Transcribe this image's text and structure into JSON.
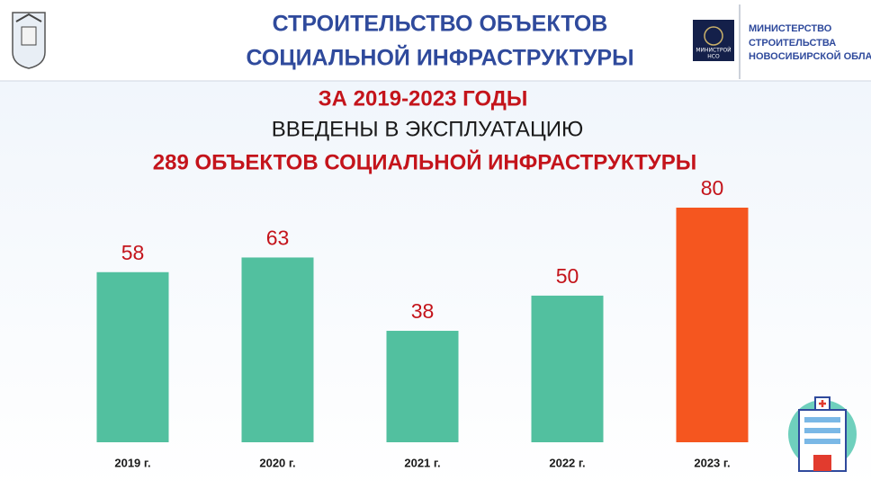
{
  "header": {
    "title": [
      "СТРОИТЕЛЬСТВО ОБЪЕКТОВ",
      "СОЦИАЛЬНОЙ ИНФРАСТРУКТУРЫ"
    ],
    "logo_text": [
      "МИНИСТРОЙ",
      "НСО"
    ],
    "ministry": [
      "МИНИСТЕРСТВО",
      "СТРОИТЕЛЬСТВА",
      "НОВОСИБИРСКОЙ ОБЛАСТИ"
    ]
  },
  "chart_data": {
    "type": "bar",
    "subtitle": [
      "ЗА 2019-2023 ГОДЫ",
      "ВВЕДЕНЫ В ЭКСПЛУАТАЦИЮ",
      "289 ОБЪЕКТОВ СОЦИАЛЬНОЙ ИНФРАСТРУКТУРЫ"
    ],
    "categories": [
      "2019 г.",
      "2020 г.",
      "2021 г.",
      "2022 г.",
      "2023 г."
    ],
    "values": [
      58,
      63,
      38,
      50,
      80
    ],
    "colors": [
      "#52c09f",
      "#52c09f",
      "#52c09f",
      "#52c09f",
      "#f5561f"
    ],
    "label_color": "#c4141b"
  }
}
